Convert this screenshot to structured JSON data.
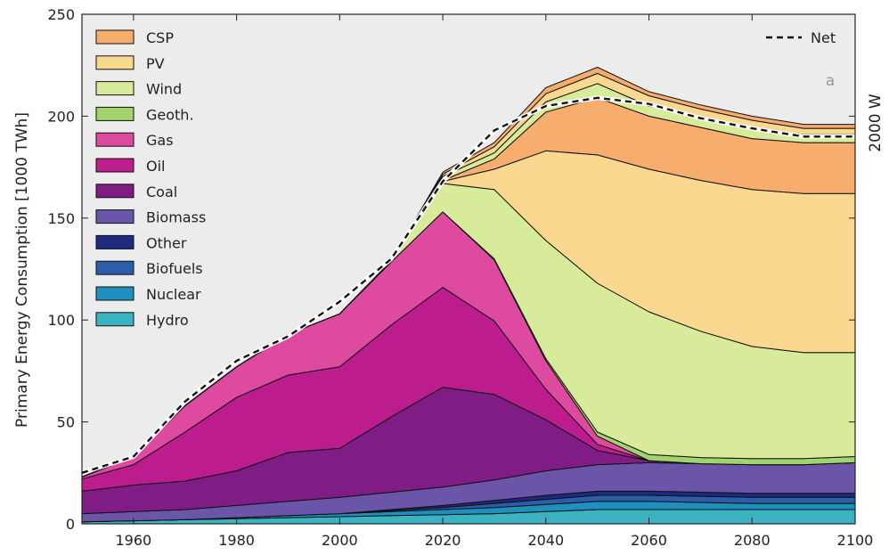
{
  "chart_data": {
    "type": "area",
    "stacked": true,
    "title": "",
    "xlabel": "",
    "ylabel": "Primary Energy Consumption [1000 TWh]",
    "right_label": "2000 W",
    "panel_label": "a",
    "xlim": [
      1950,
      2100
    ],
    "ylim": [
      0,
      250
    ],
    "x_ticks": [
      1960,
      1980,
      2000,
      2020,
      2040,
      2060,
      2080,
      2100
    ],
    "y_ticks": [
      0,
      50,
      100,
      150,
      200,
      250
    ],
    "grid": false,
    "background": "#ececec",
    "legend_position": "top-left",
    "net_legend_position": "top-right",
    "x": [
      1950,
      1960,
      1970,
      1980,
      1990,
      2000,
      2010,
      2020,
      2030,
      2040,
      2050,
      2060,
      2070,
      2080,
      2090,
      2100
    ],
    "series": [
      {
        "name": "Hydro",
        "color": "#3bb3c3",
        "values": [
          1,
          1.5,
          2,
          2.5,
          3,
          3.5,
          4,
          4.5,
          5,
          6,
          7,
          7,
          7,
          7,
          7,
          7
        ]
      },
      {
        "name": "Nuclear",
        "color": "#1f8fbf",
        "values": [
          0,
          0,
          0,
          0.5,
          1,
          1.5,
          2,
          2.5,
          3,
          3.5,
          4,
          4,
          3.5,
          3,
          3,
          3
        ]
      },
      {
        "name": "Biofuels",
        "color": "#2a5ea8",
        "values": [
          0,
          0,
          0,
          0,
          0,
          0,
          0.5,
          1,
          2,
          2.5,
          3,
          3,
          3,
          3,
          3,
          3
        ]
      },
      {
        "name": "Other",
        "color": "#1d2a80",
        "values": [
          0,
          0,
          0,
          0,
          0,
          0,
          0.5,
          1,
          1.5,
          2,
          2,
          2,
          2,
          2,
          2,
          2
        ]
      },
      {
        "name": "Biomass",
        "color": "#6a55a8",
        "values": [
          4,
          4.5,
          5,
          6,
          7,
          8,
          8.5,
          9,
          10,
          12,
          13,
          14,
          14,
          14,
          14,
          15
        ]
      },
      {
        "name": "Coal",
        "color": "#7f1c85",
        "values": [
          11,
          13,
          14,
          17,
          24,
          24,
          37,
          49,
          42,
          25,
          7,
          1,
          0,
          0,
          0,
          0
        ]
      },
      {
        "name": "Oil",
        "color": "#bd1c8f",
        "values": [
          6,
          10,
          24,
          36,
          38,
          40,
          45,
          49,
          36,
          15,
          3,
          0,
          0,
          0,
          0,
          0
        ]
      },
      {
        "name": "Gas",
        "color": "#dd4aa0",
        "values": [
          1,
          4,
          13,
          15,
          20,
          26,
          31,
          37,
          30,
          14,
          4,
          0,
          0,
          0,
          0,
          0
        ]
      },
      {
        "name": "Geoth.",
        "color": "#a2d36c",
        "values": [
          0,
          0,
          0,
          0,
          0,
          0,
          0,
          0,
          0.5,
          1,
          2,
          3,
          3,
          3,
          3,
          3
        ]
      },
      {
        "name": "Wind",
        "color": "#d7eb9b",
        "values": [
          0,
          0,
          0,
          0,
          0,
          0,
          0.5,
          14,
          34,
          58,
          73,
          70,
          62,
          55,
          52,
          51
        ]
      },
      {
        "name": "PV",
        "color": "#fbd88f",
        "values": [
          0,
          0,
          0,
          0,
          0,
          0,
          0,
          1,
          10,
          44,
          63,
          70,
          74,
          77,
          78,
          78
        ]
      },
      {
        "name": "CSP",
        "color": "#f6ad6e",
        "values": [
          0,
          0,
          0,
          0,
          0,
          0,
          0,
          0.5,
          5,
          19,
          28,
          26,
          26,
          25,
          25,
          25
        ]
      }
    ],
    "upper_series": [
      {
        "name": "",
        "color": "#d7eb9b",
        "values": [
          0,
          0,
          0,
          0,
          0,
          0,
          0,
          2,
          3,
          5,
          7,
          5,
          5,
          5,
          4,
          4
        ]
      },
      {
        "name": "",
        "color": "#fbd88f",
        "values": [
          0,
          0,
          0,
          0,
          0,
          0,
          0,
          1,
          3,
          4,
          5,
          5,
          4,
          4,
          3,
          3
        ]
      },
      {
        "name": "",
        "color": "#f6ad6e",
        "values": [
          0,
          0,
          0,
          0,
          0,
          0,
          0,
          1,
          2,
          3,
          3,
          2,
          2,
          2,
          2,
          2
        ]
      }
    ],
    "net": {
      "name": "Net",
      "values": [
        25,
        33,
        60,
        80,
        92,
        109,
        130,
        168,
        193,
        205,
        209,
        206,
        199,
        194,
        190,
        190
      ]
    }
  }
}
